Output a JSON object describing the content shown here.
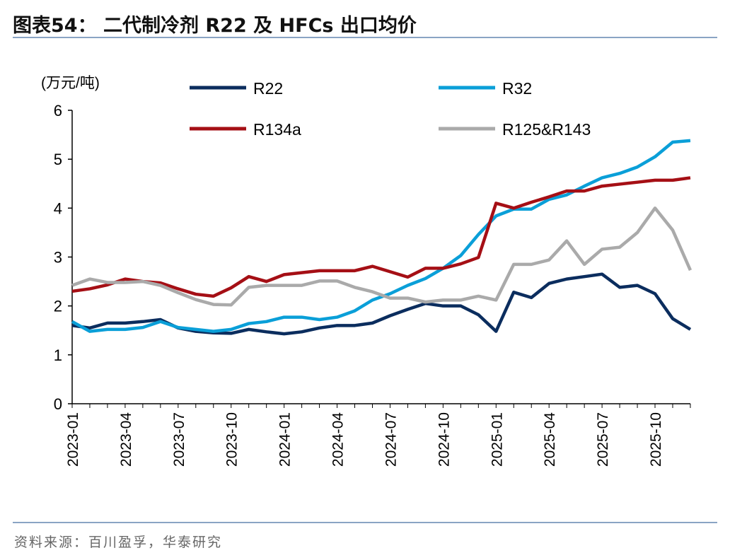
{
  "title": "图表54：  二代制冷剂 R22 及 HFCs 出口均价",
  "source": "资料来源：百川盈孚，华泰研究",
  "chart_data": {
    "type": "line",
    "title": "图表54：  二代制冷剂 R22 及 HFCs 出口均价",
    "ylabel": "(万元/吨)",
    "ylim": [
      0,
      6
    ],
    "yticks": [
      "0",
      "1",
      "2",
      "3",
      "4",
      "5",
      "6"
    ],
    "grid": false,
    "legend_placement": "top",
    "x": [
      "2023-01",
      "2023-02",
      "2023-03",
      "2023-04",
      "2023-05",
      "2023-06",
      "2023-07",
      "2023-08",
      "2023-09",
      "2023-10",
      "2023-11",
      "2023-12",
      "2024-01",
      "2024-02",
      "2024-03",
      "2024-04",
      "2024-05",
      "2024-06",
      "2024-07",
      "2024-08",
      "2024-09",
      "2024-10",
      "2024-11",
      "2024-12",
      "2025-01",
      "2025-02",
      "2025-03",
      "2025-04",
      "2025-05",
      "2025-06",
      "2025-07",
      "2025-08",
      "2025-09",
      "2025-10",
      "2025-11",
      "2025-12"
    ],
    "xticks": [
      "2023-01",
      "2023-04",
      "2023-07",
      "2023-10",
      "2024-01",
      "2024-04",
      "2024-07",
      "2024-10",
      "2025-01",
      "2025-04",
      "2025-07",
      "2025-10"
    ],
    "series": [
      {
        "name": "R22",
        "color": "#0b2d5e",
        "values": [
          1.6,
          1.55,
          1.65,
          1.65,
          1.68,
          1.72,
          1.55,
          1.48,
          1.45,
          1.44,
          1.52,
          1.47,
          1.43,
          1.47,
          1.55,
          1.6,
          1.6,
          1.65,
          1.8,
          1.93,
          2.05,
          2.0,
          2.0,
          1.82,
          1.48,
          2.28,
          2.17,
          2.46,
          2.55,
          2.6,
          2.65,
          2.38,
          2.42,
          2.25,
          1.74,
          1.52
        ]
      },
      {
        "name": "R32",
        "color": "#0a9fd8",
        "values": [
          1.68,
          1.48,
          1.52,
          1.52,
          1.56,
          1.68,
          1.56,
          1.52,
          1.48,
          1.52,
          1.64,
          1.68,
          1.77,
          1.77,
          1.72,
          1.77,
          1.9,
          2.12,
          2.25,
          2.42,
          2.56,
          2.77,
          3.03,
          3.46,
          3.84,
          3.98,
          3.98,
          4.18,
          4.27,
          4.45,
          4.62,
          4.71,
          4.84,
          5.05,
          5.35,
          5.38
        ]
      },
      {
        "name": "R134a",
        "color": "#a50f15",
        "values": [
          2.3,
          2.35,
          2.43,
          2.55,
          2.5,
          2.47,
          2.35,
          2.24,
          2.2,
          2.37,
          2.6,
          2.5,
          2.64,
          2.68,
          2.72,
          2.72,
          2.72,
          2.81,
          2.7,
          2.59,
          2.77,
          2.77,
          2.86,
          2.99,
          4.1,
          4.0,
          4.12,
          4.23,
          4.35,
          4.35,
          4.45,
          4.49,
          4.53,
          4.57,
          4.57,
          4.62
        ]
      },
      {
        "name": "R125&R143",
        "color": "#aaaaaa",
        "values": [
          2.42,
          2.55,
          2.48,
          2.48,
          2.5,
          2.42,
          2.27,
          2.13,
          2.03,
          2.02,
          2.38,
          2.42,
          2.42,
          2.42,
          2.51,
          2.51,
          2.38,
          2.29,
          2.16,
          2.16,
          2.08,
          2.12,
          2.12,
          2.2,
          2.12,
          2.85,
          2.85,
          2.94,
          3.33,
          2.85,
          3.16,
          3.2,
          3.5,
          4.0,
          3.55,
          2.73
        ]
      }
    ]
  }
}
